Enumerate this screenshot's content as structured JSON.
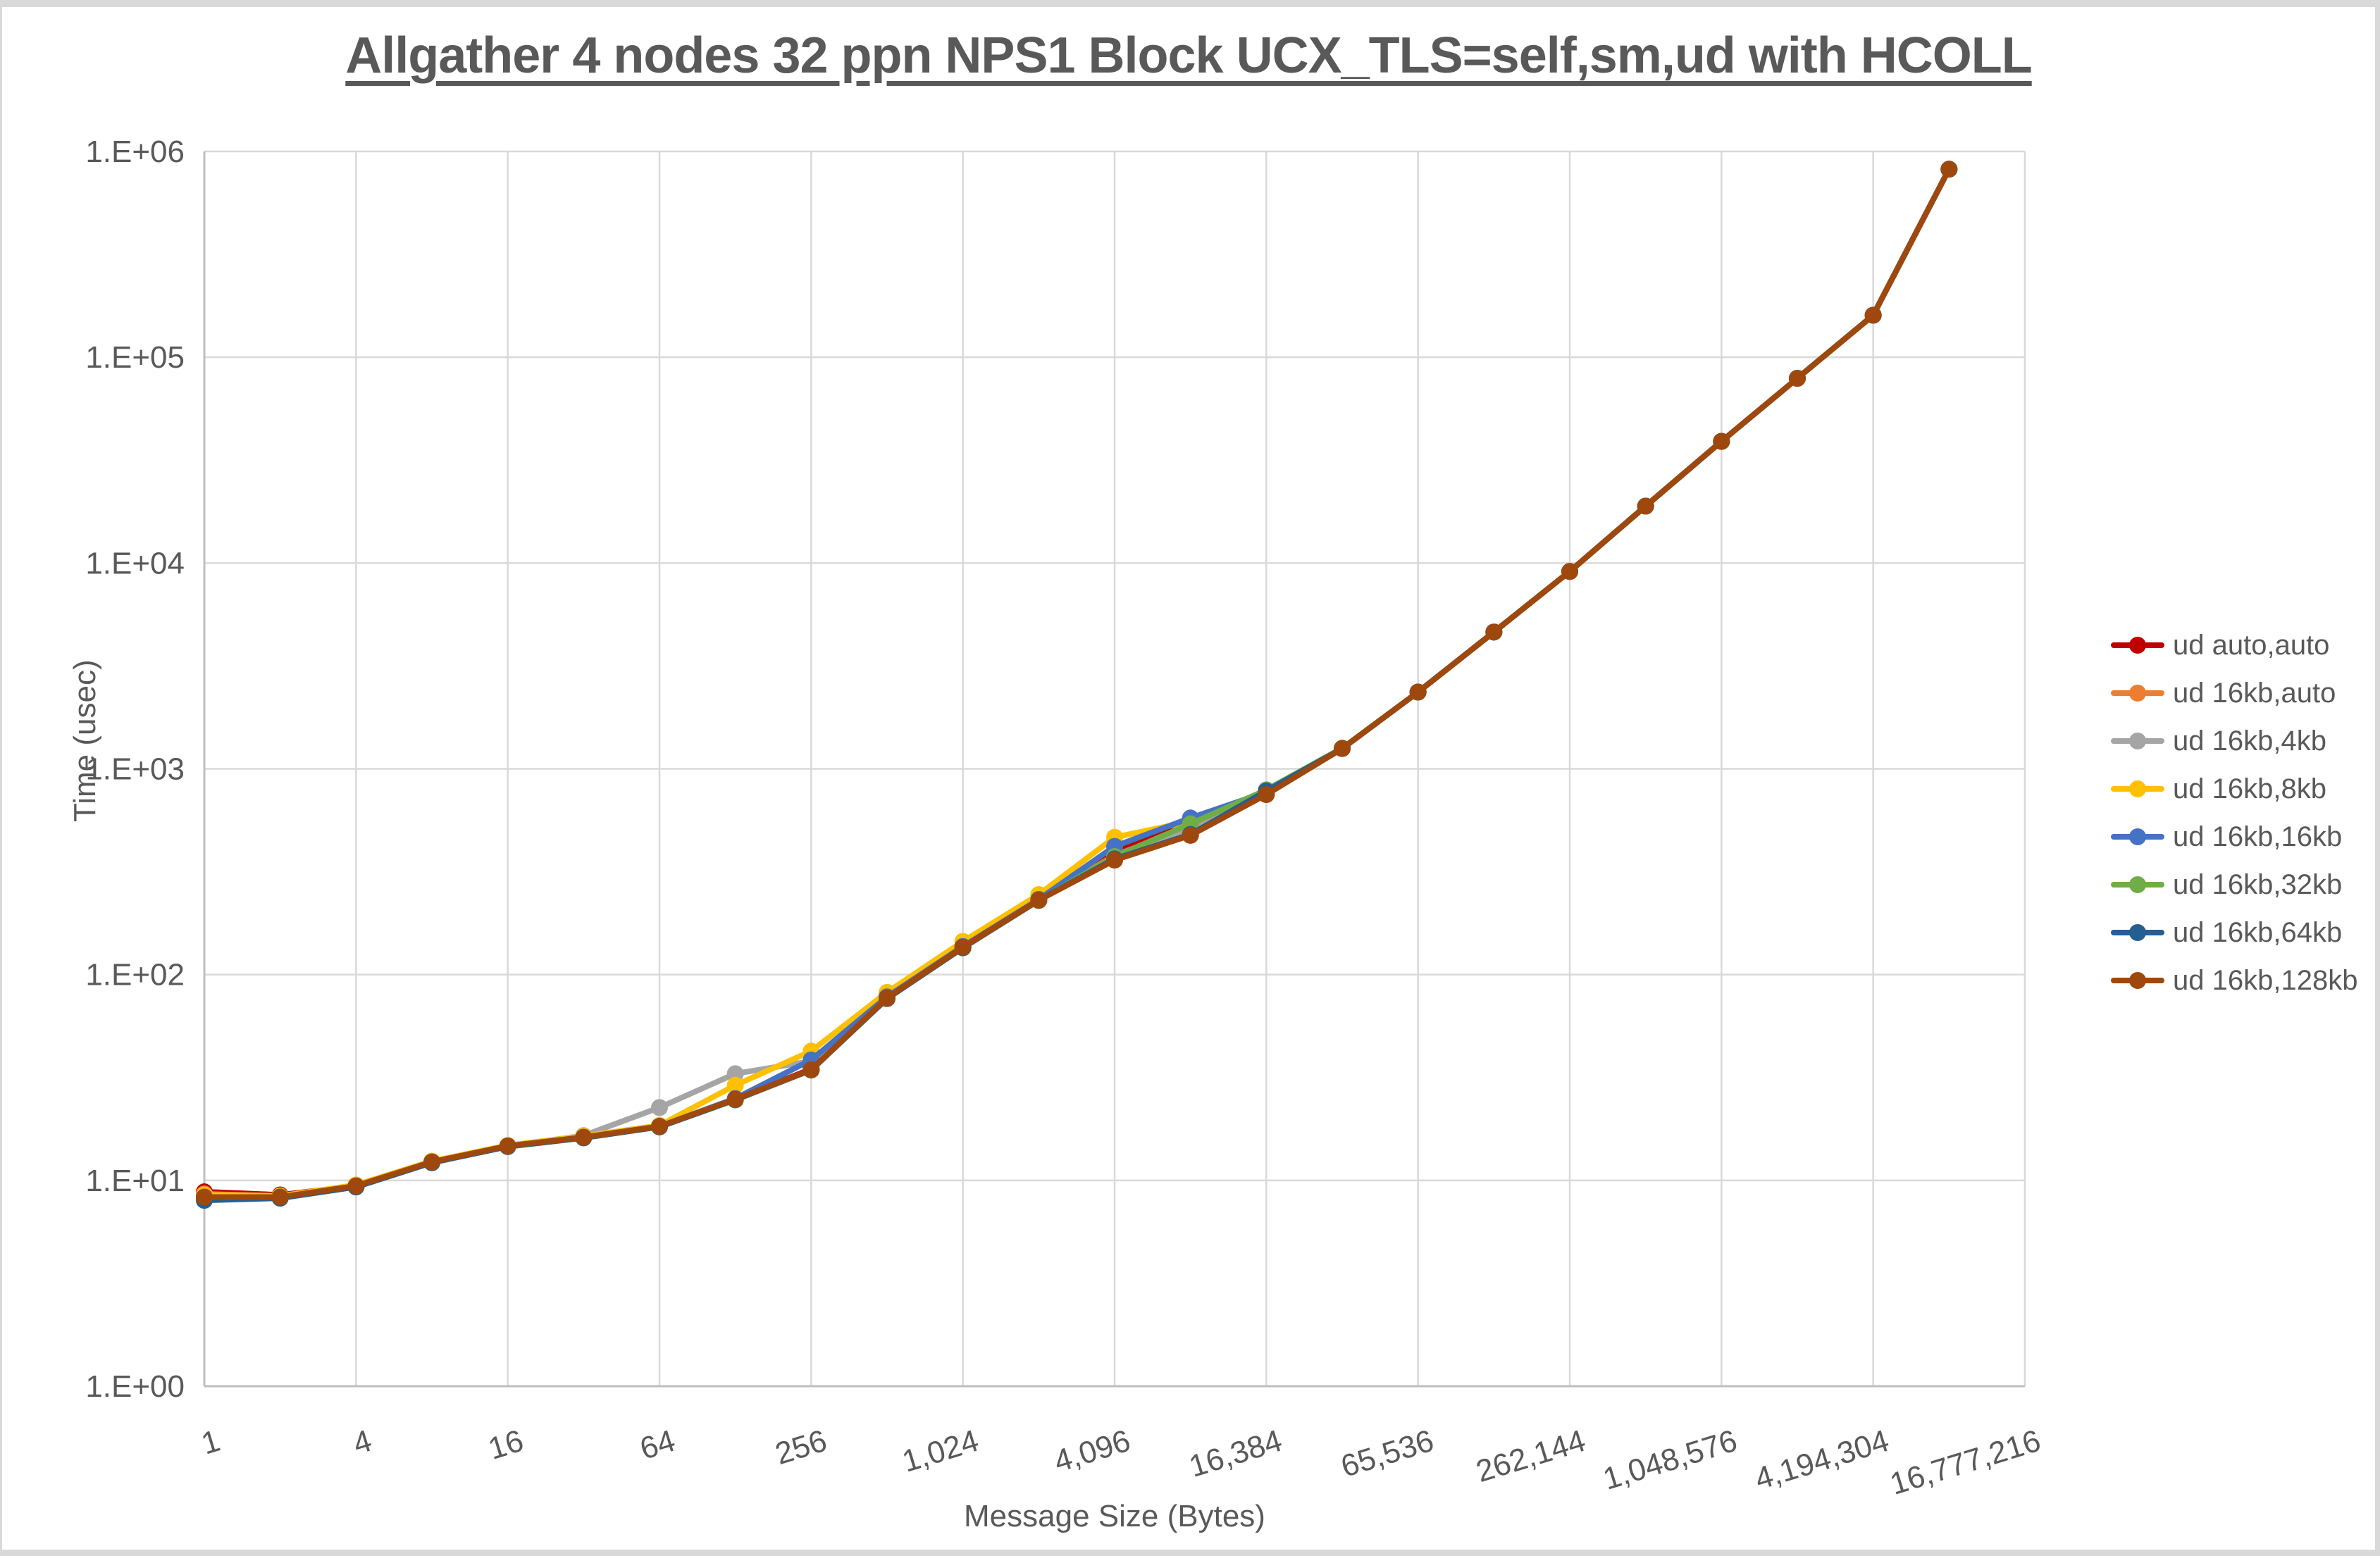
{
  "chart": {
    "title": "Allgather 4 nodes 32 ppn NPS1 Block UCX_TLS=self,sm,ud with HCOLL",
    "x_axis": {
      "title": "Message Size (Bytes)",
      "tick_labels": [
        "1",
        "4",
        "16",
        "64",
        "256",
        "1,024",
        "4,096",
        "16,384",
        "65,536",
        "262,144",
        "1,048,576",
        "4,194,304",
        "16,777,216"
      ]
    },
    "y_axis": {
      "title": "Time (usec)",
      "tick_labels": [
        "1.E+00",
        "1.E+01",
        "1.E+02",
        "1.E+03",
        "1.E+04",
        "1.E+05",
        "1.E+06"
      ]
    },
    "colors": {
      "title_text": "#595959",
      "tick_text": "#595959",
      "gridline": "#d9d9d9",
      "axis_line": "#bfbfbf",
      "frame": "#d9d9d9"
    }
  },
  "legend": {
    "position": "right",
    "items": [
      {
        "label": "ud auto,auto",
        "color": "#C00000"
      },
      {
        "label": "ud 16kb,auto",
        "color": "#ED7D31"
      },
      {
        "label": "ud 16kb,4kb",
        "color": "#A5A5A5"
      },
      {
        "label": "ud 16kb,8kb",
        "color": "#FFC000"
      },
      {
        "label": "ud 16kb,16kb",
        "color": "#4472C4"
      },
      {
        "label": "ud 16kb,32kb",
        "color": "#70AD47"
      },
      {
        "label": "ud 16kb,64kb",
        "color": "#255E91"
      },
      {
        "label": "ud 16kb,128kb",
        "color": "#9E480E"
      }
    ]
  },
  "chart_data": {
    "type": "line",
    "title": "Allgather 4 nodes 32 ppn NPS1 Block UCX_TLS=self,sm,ud with HCOLL",
    "xlabel": "Message Size (Bytes)",
    "ylabel": "Time (usec)",
    "x_scale": "categorical-log2",
    "y_scale": "log10",
    "ylim": [
      1,
      1000000
    ],
    "grid": true,
    "legend_position": "right",
    "marker": "circle",
    "categories": [
      1,
      2,
      4,
      8,
      16,
      32,
      64,
      128,
      256,
      512,
      1024,
      2048,
      4096,
      8192,
      16384,
      32768,
      65536,
      131072,
      262144,
      524288,
      1048576,
      2097152,
      4194304,
      8388608,
      16777216
    ],
    "note": "last category 16,777,216 has no data point; y values in usec",
    "series": [
      {
        "name": "ud auto,auto",
        "color": "#C00000",
        "values": [
          8.8,
          8.5,
          9.4,
          12.3,
          14.7,
          16.2,
          18.3,
          24.8,
          34.8,
          77,
          136,
          232,
          400,
          550,
          755,
          1255,
          2360,
          4620,
          9100,
          18900,
          39000,
          79000,
          160000,
          820000,
          null
        ]
      },
      {
        "name": "ud 16kb,auto",
        "color": "#ED7D31",
        "values": [
          8.6,
          8.4,
          9.4,
          12.3,
          14.7,
          16.2,
          18.4,
          24.8,
          34.5,
          77,
          136,
          230,
          380,
          520,
          750,
          1255,
          2360,
          4620,
          9100,
          18900,
          39000,
          79000,
          160000,
          820000,
          null
        ]
      },
      {
        "name": "ud 16kb,4kb",
        "color": "#A5A5A5",
        "values": [
          8.5,
          8.4,
          9.4,
          12.3,
          14.7,
          16.5,
          22.6,
          33,
          38,
          79,
          137,
          230,
          370,
          500,
          750,
          1255,
          2360,
          4620,
          9100,
          18900,
          39000,
          79000,
          160000,
          820000,
          null
        ]
      },
      {
        "name": "ud 16kb,8kb",
        "color": "#FFC000",
        "values": [
          8.5,
          8.4,
          9.5,
          12.4,
          14.8,
          16.4,
          18.5,
          29,
          42.5,
          82,
          145,
          245,
          465,
          555,
          760,
          1260,
          2360,
          4620,
          9100,
          18900,
          39000,
          79000,
          160000,
          820000,
          null
        ]
      },
      {
        "name": "ud 16kb,16kb",
        "color": "#4472C4",
        "values": [
          8.2,
          8.3,
          9.3,
          12.2,
          14.7,
          16.2,
          18.3,
          25,
          38.5,
          78,
          137,
          232,
          420,
          577,
          770,
          1255,
          2360,
          4620,
          9100,
          18900,
          39000,
          79000,
          160000,
          820000,
          null
        ]
      },
      {
        "name": "ud 16kb,32kb",
        "color": "#70AD47",
        "values": [
          8.3,
          8.2,
          9.3,
          12.2,
          14.6,
          16.1,
          18.2,
          24.6,
          34.4,
          76.5,
          135,
          229,
          375,
          540,
          790,
          1260,
          2360,
          4620,
          9100,
          18900,
          39000,
          79000,
          160000,
          820000,
          null
        ]
      },
      {
        "name": "ud 16kb,64kb",
        "color": "#255E91",
        "values": [
          8.0,
          8.2,
          9.3,
          12.2,
          14.6,
          16.1,
          18.2,
          24.7,
          34.4,
          76.5,
          135,
          230,
          365,
          480,
          780,
          1255,
          2360,
          4620,
          9100,
          18900,
          39000,
          79000,
          160000,
          820000,
          null
        ]
      },
      {
        "name": "ud 16kb,128kb",
        "color": "#9E480E",
        "values": [
          8.3,
          8.3,
          9.4,
          12.3,
          14.7,
          16.2,
          18.3,
          24.8,
          34.5,
          77,
          136,
          230,
          360,
          475,
          750,
          1255,
          2360,
          4620,
          9100,
          18900,
          39000,
          79000,
          160000,
          820000,
          null
        ]
      }
    ]
  }
}
